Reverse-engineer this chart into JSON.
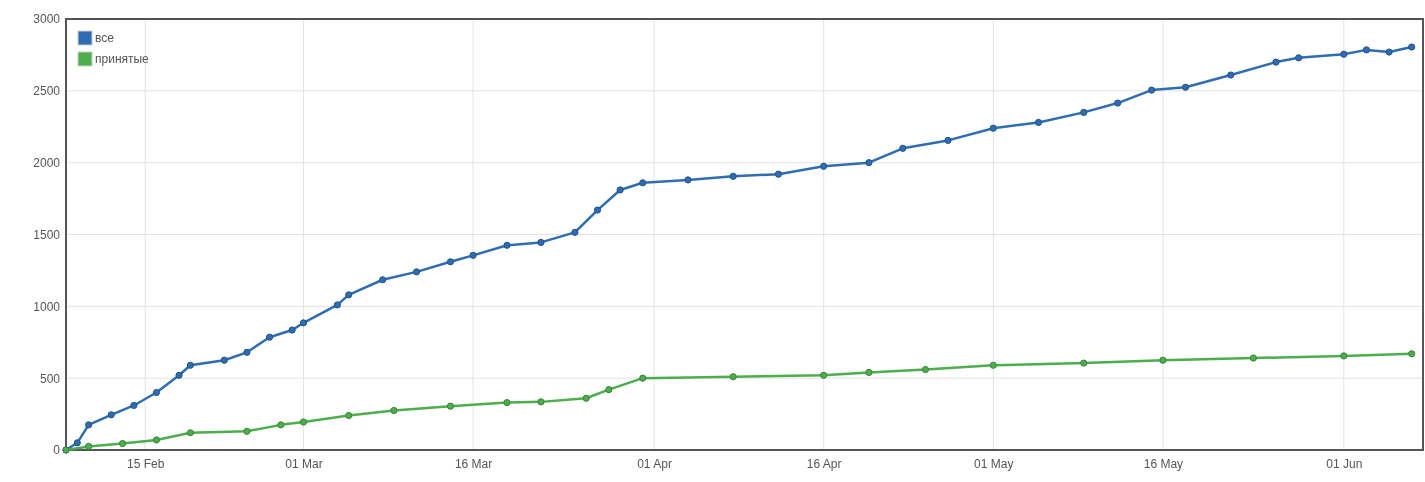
{
  "chart_data": {
    "type": "line",
    "marker": "circle",
    "grid": true,
    "legend": "top left",
    "xlim": [
      "--02-08",
      "--06-08"
    ],
    "xticks": [
      {
        "value": "--02-15",
        "label": "15 Feb"
      },
      {
        "value": "--03-01",
        "label": "01 Mar"
      },
      {
        "value": "--03-16",
        "label": "16 Mar"
      },
      {
        "value": "--04-01",
        "label": "01 Apr"
      },
      {
        "value": "--04-16",
        "label": "16 Apr"
      },
      {
        "value": "--05-01",
        "label": "01 May"
      },
      {
        "value": "--05-16",
        "label": "16 May"
      },
      {
        "value": "--06-01",
        "label": "01 Jun"
      }
    ],
    "ylim": [
      0,
      3000
    ],
    "yticks": [
      0,
      500,
      1000,
      1500,
      2000,
      2500,
      3000
    ],
    "series": [
      {
        "name": "все",
        "color": "#2f6db3",
        "x": [
          "--02-08",
          "--02-09",
          "--02-10",
          "--02-12",
          "--02-14",
          "--02-16",
          "--02-18",
          "--02-19",
          "--02-22",
          "--02-24",
          "--02-26",
          "--02-28",
          "--03-01",
          "--03-04",
          "--03-05",
          "--03-08",
          "--03-11",
          "--03-14",
          "--03-16",
          "--03-19",
          "--03-22",
          "--03-25",
          "--03-27",
          "--03-29",
          "--03-31",
          "--04-04",
          "--04-08",
          "--04-12",
          "--04-16",
          "--04-20",
          "--04-23",
          "--04-27",
          "--05-01",
          "--05-05",
          "--05-09",
          "--05-12",
          "--05-15",
          "--05-18",
          "--05-22",
          "--05-26",
          "--05-28",
          "--06-01",
          "--06-03",
          "--06-05",
          "--06-07"
        ],
        "values": [
          0,
          50,
          175,
          245,
          310,
          400,
          520,
          590,
          625,
          680,
          785,
          835,
          885,
          1010,
          1080,
          1185,
          1240,
          1310,
          1355,
          1425,
          1445,
          1515,
          1670,
          1810,
          1860,
          1880,
          1905,
          1920,
          1975,
          2000,
          2100,
          2155,
          2240,
          2280,
          2350,
          2415,
          2505,
          2525,
          2610,
          2700,
          2730,
          2755,
          2785,
          2770,
          2805
        ]
      },
      {
        "name": "принятые",
        "color": "#4cae4c",
        "x": [
          "--02-08",
          "--02-10",
          "--02-13",
          "--02-16",
          "--02-19",
          "--02-24",
          "--02-27",
          "--03-01",
          "--03-05",
          "--03-09",
          "--03-14",
          "--03-19",
          "--03-22",
          "--03-26",
          "--03-28",
          "--03-31",
          "--04-08",
          "--04-16",
          "--04-20",
          "--04-25",
          "--05-01",
          "--05-09",
          "--05-16",
          "--05-24",
          "--06-01",
          "--06-07"
        ],
        "values": [
          0,
          25,
          45,
          70,
          120,
          130,
          175,
          195,
          240,
          275,
          305,
          330,
          335,
          360,
          420,
          500,
          510,
          520,
          540,
          560,
          590,
          605,
          625,
          640,
          655,
          670
        ]
      }
    ]
  }
}
